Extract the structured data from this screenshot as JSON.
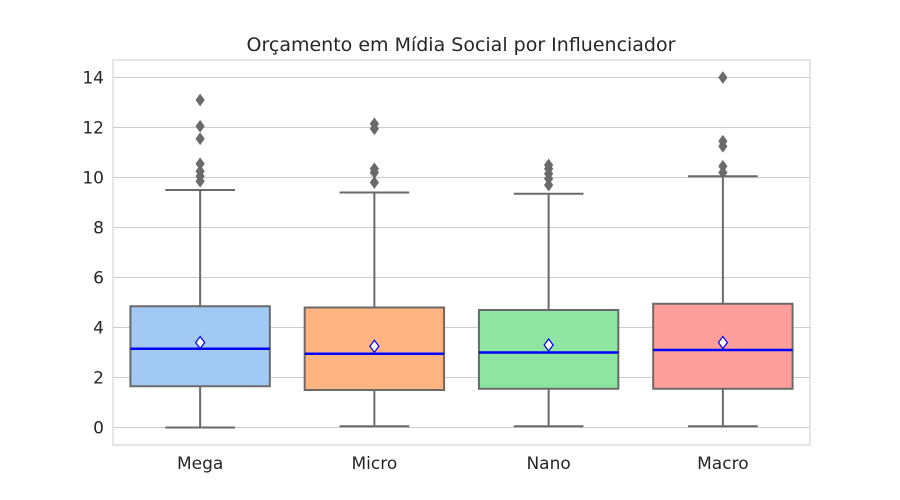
{
  "chart_data": {
    "type": "box",
    "title": "Orçamento em Mídia Social por Influenciador",
    "xlabel": "",
    "ylabel": "",
    "ylim": [
      -0.7,
      14.7
    ],
    "yticks": [
      0,
      2,
      4,
      6,
      8,
      10,
      12,
      14
    ],
    "grid": true,
    "categories": [
      "Mega",
      "Micro",
      "Nano",
      "Macro"
    ],
    "series": [
      {
        "category": "Mega",
        "color": "#a1c9f4",
        "whisker_low": 0.0,
        "q1": 1.65,
        "median": 3.15,
        "q3": 4.85,
        "whisker_high": 9.5,
        "mean": 3.4,
        "outliers": [
          9.85,
          10.05,
          10.25,
          10.55,
          11.55,
          12.05,
          13.1
        ]
      },
      {
        "category": "Micro",
        "color": "#ffb482",
        "whisker_low": 0.05,
        "q1": 1.5,
        "median": 2.95,
        "q3": 4.8,
        "whisker_high": 9.4,
        "mean": 3.25,
        "outliers": [
          9.8,
          10.2,
          10.35,
          11.95,
          12.15
        ]
      },
      {
        "category": "Nano",
        "color": "#8de5a1",
        "whisker_low": 0.05,
        "q1": 1.55,
        "median": 3.0,
        "q3": 4.7,
        "whisker_high": 9.35,
        "mean": 3.3,
        "outliers": [
          9.7,
          9.95,
          10.15,
          10.35,
          10.5
        ]
      },
      {
        "category": "Macro",
        "color": "#ff9f9b",
        "whisker_low": 0.05,
        "q1": 1.55,
        "median": 3.1,
        "q3": 4.95,
        "whisker_high": 10.05,
        "mean": 3.4,
        "outliers": [
          10.2,
          10.45,
          11.25,
          11.45,
          14.0
        ]
      }
    ],
    "colors": {
      "box_edge": "#6a6a6a",
      "median": "#0000ff",
      "mean_marker_edge": "#0000ff",
      "mean_marker_fill": "#ffffff",
      "outlier": "#6a6a6a",
      "grid": "#cccccc",
      "frame": "#cccccc"
    }
  }
}
